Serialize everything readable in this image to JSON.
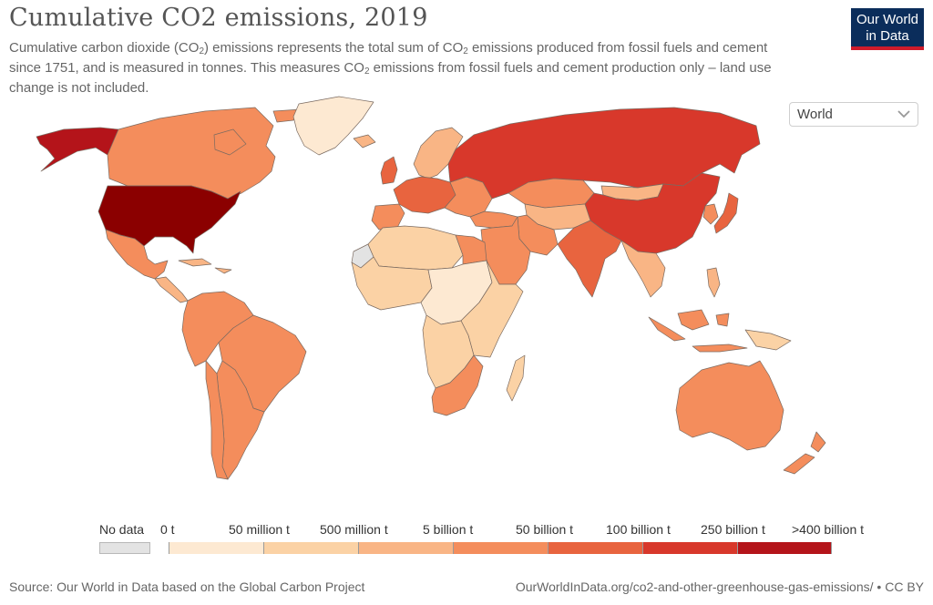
{
  "header": {
    "title": "Cumulative CO2 emissions, 2019",
    "subtitle": {
      "part1": "Cumulative carbon dioxide (CO",
      "sub1": "2",
      "part2": ") emissions represents the total sum of CO",
      "sub2": "2",
      "part3": " emissions produced from fossil fuels and cement since 1751, and is measured in tonnes. This measures CO",
      "sub3": "2",
      "part4": " emissions from fossil fuels and cement production only – land use change is not included."
    }
  },
  "logo": {
    "line1": "Our World",
    "line2": "in Data",
    "bg_color": "#0b2d5b",
    "accent_color": "#cf1b2b"
  },
  "region_selector": {
    "value": "World",
    "icon": "chevron-down-icon"
  },
  "legend": {
    "no_data_label": "No data",
    "no_data_color": "#e3e3e3",
    "bins": [
      {
        "label": "0 t",
        "color": "#fde9d2"
      },
      {
        "label": "50 million t",
        "color": "#fbd2a5"
      },
      {
        "label": "500 million t",
        "color": "#f9b585"
      },
      {
        "label": "5 billion t",
        "color": "#f48d5c"
      },
      {
        "label": "50 billion t",
        "color": "#e8643f"
      },
      {
        "label": "100 billion t",
        "color": "#d8382b"
      },
      {
        "label": "250 billion t",
        "color": "#b4141a"
      }
    ],
    "last_label": ">400 billion t"
  },
  "footer": {
    "source": "Source: Our World in Data based on the Global Carbon Project",
    "link": "OurWorldInData.org/co2-and-other-greenhouse-gas-emissions/ • CC BY"
  },
  "map_regions": [
    {
      "name": "alaska",
      "color": "#b4141a"
    },
    {
      "name": "canada",
      "color": "#f48d5c"
    },
    {
      "name": "greenland",
      "color": "#fde9d2"
    },
    {
      "name": "usa",
      "color": "#8b0000"
    },
    {
      "name": "mexico",
      "color": "#f48d5c"
    },
    {
      "name": "central-america",
      "color": "#f9b585"
    },
    {
      "name": "caribbean",
      "color": "#f9b585"
    },
    {
      "name": "south-america-north",
      "color": "#f48d5c"
    },
    {
      "name": "brazil",
      "color": "#f48d5c"
    },
    {
      "name": "south-america-south",
      "color": "#f48d5c"
    },
    {
      "name": "chile",
      "color": "#f48d5c"
    },
    {
      "name": "iceland",
      "color": "#f9b585"
    },
    {
      "name": "uk",
      "color": "#e8643f"
    },
    {
      "name": "scandinavia",
      "color": "#f9b585"
    },
    {
      "name": "western-europe",
      "color": "#e8643f"
    },
    {
      "name": "iberia",
      "color": "#f48d5c"
    },
    {
      "name": "eastern-europe",
      "color": "#f48d5c"
    },
    {
      "name": "russia",
      "color": "#d8382b"
    },
    {
      "name": "kazakhstan",
      "color": "#f48d5c"
    },
    {
      "name": "mongolia",
      "color": "#f9b585"
    },
    {
      "name": "china",
      "color": "#d8382b"
    },
    {
      "name": "japan",
      "color": "#e8643f"
    },
    {
      "name": "korea",
      "color": "#f48d5c"
    },
    {
      "name": "turkey",
      "color": "#f48d5c"
    },
    {
      "name": "middle-east",
      "color": "#f48d5c"
    },
    {
      "name": "iran",
      "color": "#f48d5c"
    },
    {
      "name": "central-asia",
      "color": "#f9b585"
    },
    {
      "name": "india",
      "color": "#e8643f"
    },
    {
      "name": "southeast-asia",
      "color": "#f9b585"
    },
    {
      "name": "indonesia",
      "color": "#f48d5c"
    },
    {
      "name": "philippines",
      "color": "#f9b585"
    },
    {
      "name": "papua",
      "color": "#fbd2a5"
    },
    {
      "name": "north-africa",
      "color": "#fbd2a5"
    },
    {
      "name": "egypt",
      "color": "#f48d5c"
    },
    {
      "name": "west-africa",
      "color": "#fbd2a5"
    },
    {
      "name": "central-africa",
      "color": "#fde9d2"
    },
    {
      "name": "east-africa",
      "color": "#fbd2a5"
    },
    {
      "name": "southern-africa",
      "color": "#fbd2a5"
    },
    {
      "name": "south-africa",
      "color": "#f48d5c"
    },
    {
      "name": "madagascar",
      "color": "#fbd2a5"
    },
    {
      "name": "australia",
      "color": "#f48d5c"
    },
    {
      "name": "new-zealand",
      "color": "#f48d5c"
    },
    {
      "name": "western-sahara",
      "color": "#e3e3e3"
    }
  ]
}
